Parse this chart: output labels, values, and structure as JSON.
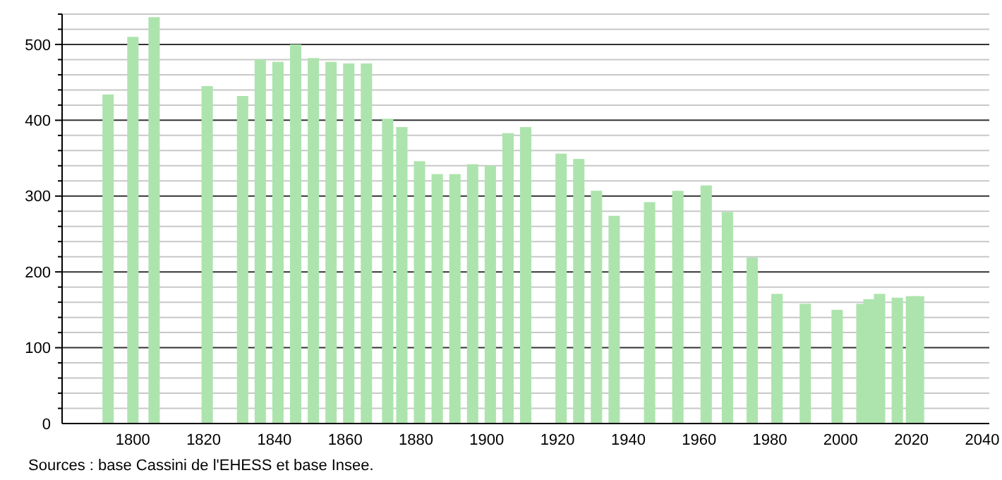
{
  "chart_data": {
    "type": "bar",
    "color": "#ade4ad",
    "x": [
      1793,
      1800,
      1806,
      1821,
      1831,
      1836,
      1841,
      1846,
      1851,
      1856,
      1861,
      1866,
      1872,
      1876,
      1881,
      1886,
      1891,
      1896,
      1901,
      1906,
      1911,
      1921,
      1926,
      1931,
      1936,
      1946,
      1954,
      1962,
      1968,
      1975,
      1982,
      1990,
      1999,
      2006,
      2008,
      2011,
      2016,
      2020,
      2022
    ],
    "values": [
      434,
      510,
      536,
      445,
      432,
      480,
      477,
      500,
      482,
      477,
      475,
      475,
      402,
      391,
      346,
      329,
      329,
      342,
      340,
      383,
      391,
      356,
      349,
      307,
      274,
      292,
      307,
      314,
      279,
      219,
      171,
      158,
      150,
      158,
      164,
      171,
      166,
      168,
      168
    ],
    "xlim": [
      1780,
      2042
    ],
    "xticks": [
      1800,
      1820,
      1840,
      1860,
      1880,
      1900,
      1920,
      1940,
      1960,
      1980,
      2000,
      2020,
      2040
    ],
    "ylim": [
      0,
      540
    ],
    "yticks": [
      0,
      {
        "value": 20,
        "label": null
      },
      {
        "value": 40,
        "label": null
      },
      {
        "value": 60,
        "label": null
      },
      {
        "value": 80,
        "label": null
      },
      100,
      {
        "value": 120,
        "label": null
      },
      {
        "value": 140,
        "label": null
      },
      {
        "value": 160,
        "label": null
      },
      {
        "value": 180,
        "label": null
      },
      200,
      {
        "value": 220,
        "label": null
      },
      {
        "value": 240,
        "label": null
      },
      {
        "value": 260,
        "label": null
      },
      {
        "value": 280,
        "label": null
      },
      300,
      {
        "value": 320,
        "label": null
      },
      {
        "value": 340,
        "label": null
      },
      {
        "value": 360,
        "label": null
      },
      {
        "value": 380,
        "label": null
      },
      400,
      {
        "value": 420,
        "label": null
      },
      {
        "value": 440,
        "label": null
      },
      {
        "value": 460,
        "label": null
      },
      {
        "value": 480,
        "label": null
      },
      500,
      {
        "value": 520,
        "label": null
      },
      {
        "value": 540,
        "label": null
      }
    ],
    "grid": "y",
    "annotations": [
      "Sources : base Cassini de l'EHESS et base Insee."
    ]
  }
}
